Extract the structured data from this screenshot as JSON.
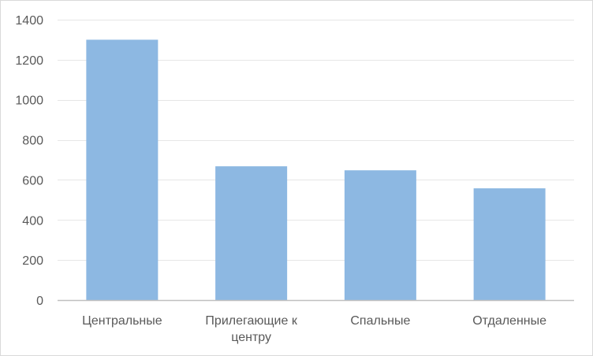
{
  "chart_data": {
    "type": "bar",
    "categories": [
      "Центральные",
      "Прилегающие  к центру",
      "Спальные",
      "Отдаленные"
    ],
    "category_label_lines": [
      [
        "Центральные"
      ],
      [
        "Прилегающие  к",
        "центру"
      ],
      [
        "Спальные"
      ],
      [
        "Отдаленные"
      ]
    ],
    "values": [
      1300,
      668,
      648,
      558
    ],
    "ylim": [
      0,
      1400
    ],
    "yticks": [
      0,
      200,
      400,
      600,
      800,
      1000,
      1200,
      1400
    ],
    "grid": true,
    "legend": "none",
    "bar_color": "#8db8e2",
    "grid_color": "#e6e6e6",
    "axis_color": "#bfbfbf",
    "text_color": "#595959"
  }
}
